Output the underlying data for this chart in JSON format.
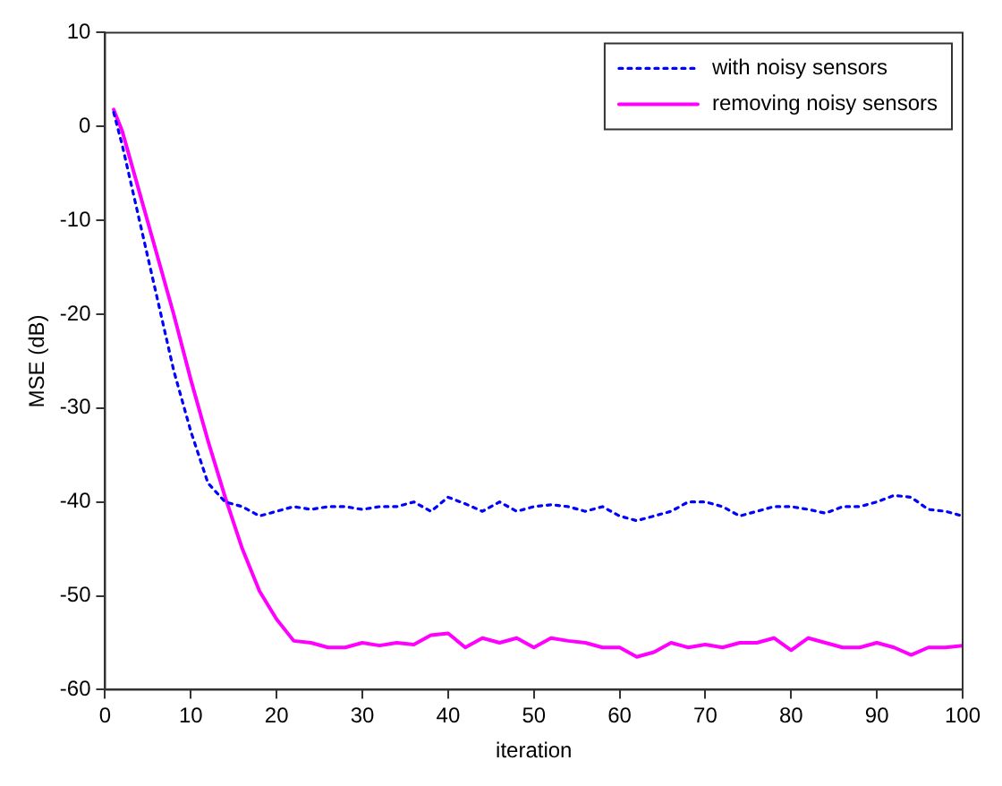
{
  "chart_data": {
    "type": "line",
    "xlabel": "iteration",
    "ylabel": "MSE (dB)",
    "xlim": [
      0,
      100
    ],
    "xticks": [
      0,
      10,
      20,
      30,
      40,
      50,
      60,
      70,
      80,
      90,
      100
    ],
    "ylim": [
      -60,
      10
    ],
    "yticks": [
      -60,
      -50,
      -40,
      -30,
      -20,
      -10,
      0,
      10
    ],
    "grid": false,
    "legend": "top right",
    "marker": "none",
    "x": [
      1,
      2,
      4,
      6,
      8,
      10,
      12,
      14,
      16,
      18,
      20,
      22,
      24,
      26,
      28,
      30,
      32,
      34,
      36,
      38,
      40,
      42,
      44,
      46,
      48,
      50,
      52,
      54,
      56,
      58,
      60,
      62,
      64,
      66,
      68,
      70,
      72,
      74,
      76,
      78,
      80,
      82,
      84,
      86,
      88,
      90,
      92,
      94,
      96,
      98,
      100
    ],
    "series": [
      {
        "name": "with noisy sensors",
        "color": "#0000ff",
        "line_style": "dotted",
        "values": [
          1.5,
          -2,
          -10,
          -18,
          -26,
          -32.5,
          -38,
          -40,
          -40.5,
          -41.5,
          -41,
          -40.5,
          -40.8,
          -40.5,
          -40.5,
          -40.8,
          -40.5,
          -40.5,
          -40,
          -41,
          -39.5,
          -40.2,
          -41,
          -40,
          -41,
          -40.5,
          -40.3,
          -40.5,
          -41,
          -40.5,
          -41.5,
          -42,
          -41.5,
          -41,
          -40,
          -40,
          -40.5,
          -41.5,
          -41,
          -40.5,
          -40.5,
          -40.8,
          -41.2,
          -40.5,
          -40.5,
          -40,
          -39.3,
          -39.5,
          -40.8,
          -41,
          -41.5
        ]
      },
      {
        "name": "removing noisy sensors",
        "color": "#ff00ff",
        "line_style": "solid",
        "values": [
          1.8,
          -0.5,
          -7,
          -13.5,
          -20,
          -27,
          -33.5,
          -39.5,
          -45,
          -49.5,
          -52.5,
          -54.8,
          -55,
          -55.5,
          -55.5,
          -55,
          -55.3,
          -55,
          -55.2,
          -54.2,
          -54,
          -55.5,
          -54.5,
          -55,
          -54.5,
          -55.5,
          -54.5,
          -54.8,
          -55,
          -55.5,
          -55.5,
          -56.5,
          -56,
          -55,
          -55.5,
          -55.2,
          -55.5,
          -55,
          -55,
          -54.5,
          -55.8,
          -54.5,
          -55,
          -55.5,
          -55.5,
          -55,
          -55.5,
          -56.3,
          -55.5,
          -55.5,
          -55.3
        ]
      }
    ]
  }
}
